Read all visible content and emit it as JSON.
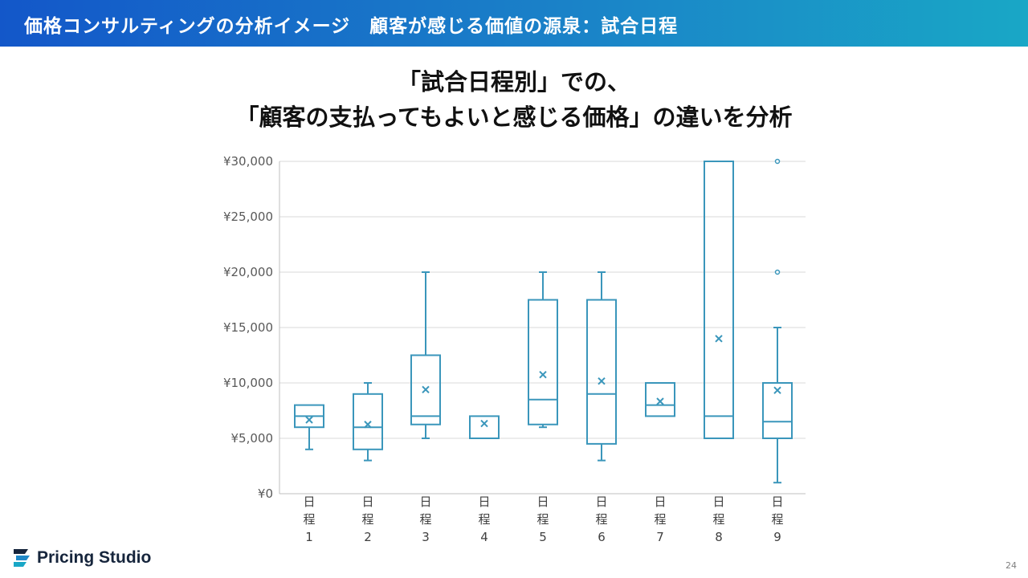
{
  "header": {
    "title": "価格コンサルティングの分析イメージ　顧客が感じる価値の源泉：試合日程"
  },
  "slide_title": {
    "line1": "「試合日程別」での、",
    "line2": "「顧客の支払ってもよいと感じる価格」の違いを分析"
  },
  "chart_data": {
    "type": "boxplot",
    "title": "",
    "xlabel": "",
    "ylabel": "",
    "ylim": [
      0,
      30000
    ],
    "ytick_labels": [
      "¥0",
      "¥5,000",
      "¥10,000",
      "¥15,000",
      "¥20,000",
      "¥25,000",
      "¥30,000"
    ],
    "yticks": [
      0,
      5000,
      10000,
      15000,
      20000,
      25000,
      30000
    ],
    "grid": true,
    "color": "#3a96bb",
    "categories": [
      {
        "label": [
          "日",
          "程",
          "1"
        ],
        "min": 4000,
        "q1": 6000,
        "median": 7000,
        "q3": 8000,
        "max": 8000,
        "mean": 6667,
        "outliers": []
      },
      {
        "label": [
          "日",
          "程",
          "2"
        ],
        "min": 3000,
        "q1": 4000,
        "median": 6000,
        "q3": 9000,
        "max": 10000,
        "mean": 6250,
        "outliers": []
      },
      {
        "label": [
          "日",
          "程",
          "3"
        ],
        "min": 5000,
        "q1": 6250,
        "median": 7000,
        "q3": 12500,
        "max": 20000,
        "mean": 9400,
        "outliers": []
      },
      {
        "label": [
          "日",
          "程",
          "4"
        ],
        "min": 5000,
        "q1": 5000,
        "median": 5000,
        "q3": 7000,
        "max": 7000,
        "mean": 6333,
        "outliers": []
      },
      {
        "label": [
          "日",
          "程",
          "5"
        ],
        "min": 6000,
        "q1": 6250,
        "median": 8500,
        "q3": 17500,
        "max": 20000,
        "mean": 10750,
        "outliers": []
      },
      {
        "label": [
          "日",
          "程",
          "6"
        ],
        "min": 3000,
        "q1": 4500,
        "median": 9000,
        "q3": 17500,
        "max": 20000,
        "mean": 10167,
        "outliers": []
      },
      {
        "label": [
          "日",
          "程",
          "7"
        ],
        "min": 7000,
        "q1": 7000,
        "median": 8000,
        "q3": 10000,
        "max": 10000,
        "mean": 8333,
        "outliers": []
      },
      {
        "label": [
          "日",
          "程",
          "8"
        ],
        "min": 5000,
        "q1": 5000,
        "median": 7000,
        "q3": 30000,
        "max": 30000,
        "mean": 14000,
        "outliers": []
      },
      {
        "label": [
          "日",
          "程",
          "9"
        ],
        "min": 1000,
        "q1": 5000,
        "median": 6500,
        "q3": 10000,
        "max": 15000,
        "mean": 9333,
        "outliers": [
          20000,
          30000
        ]
      }
    ]
  },
  "footer": {
    "logo_text": "Pricing Studio",
    "page_number": "24"
  }
}
